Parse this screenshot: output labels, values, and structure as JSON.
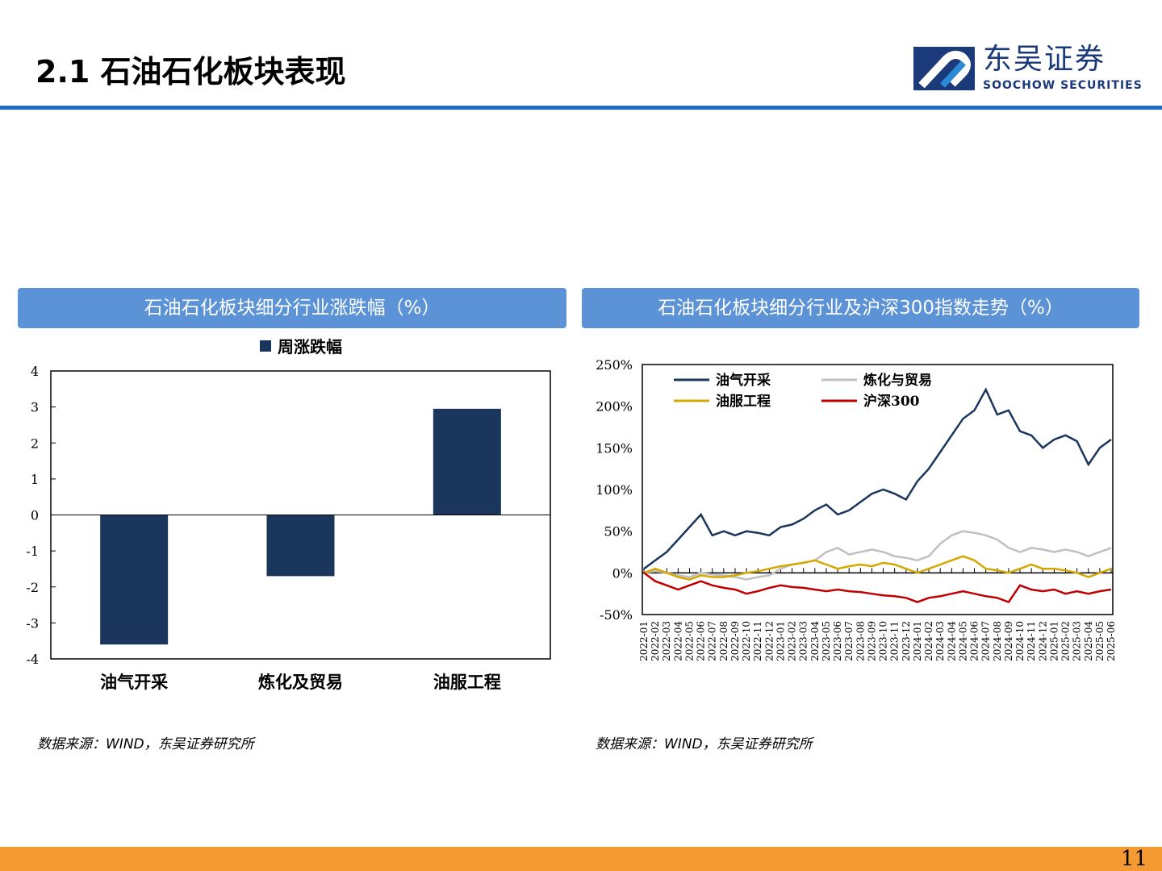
{
  "header": {
    "title": "2.1 石油石化板块表现",
    "logo_cn": "东吴证券",
    "logo_en": "SOOCHOW SECURITIES"
  },
  "panels": [
    {
      "title": "石油石化板块细分行业涨跌幅（%）",
      "source": "数据来源：WIND，东吴证券研究所"
    },
    {
      "title": "石油石化板块细分行业及沪深300指数走势（%）",
      "source": "数据来源：WIND，东吴证券研究所"
    }
  ],
  "page_number": "11",
  "chart_data": [
    {
      "type": "bar",
      "legend": [
        "周涨跌幅"
      ],
      "categories": [
        "油气开采",
        "炼化及贸易",
        "油服工程"
      ],
      "values": [
        -3.6,
        -1.7,
        2.95
      ],
      "ylim": [
        -4,
        4
      ],
      "yticks": [
        4,
        3,
        2,
        1,
        0,
        -1,
        -2,
        -3,
        -4
      ],
      "color": "#1b365d"
    },
    {
      "type": "line",
      "ylim": [
        -50,
        250
      ],
      "yticks": [
        "250%",
        "200%",
        "150%",
        "100%",
        "50%",
        "0%",
        "-50%"
      ],
      "x": [
        "2022-01",
        "2022-02",
        "2022-03",
        "2022-04",
        "2022-05",
        "2022-06",
        "2022-07",
        "2022-08",
        "2022-09",
        "2022-10",
        "2022-11",
        "2022-12",
        "2023-01",
        "2023-02",
        "2023-03",
        "2023-04",
        "2023-05",
        "2023-06",
        "2023-07",
        "2023-08",
        "2023-09",
        "2023-10",
        "2023-11",
        "2023-12",
        "2024-01",
        "2024-02",
        "2024-03",
        "2024-04",
        "2024-05",
        "2024-06",
        "2024-07",
        "2024-08",
        "2024-09",
        "2024-10",
        "2024-11",
        "2024-12",
        "2025-01",
        "2025-02",
        "2025-03",
        "2025-04",
        "2025-05",
        "2025-06"
      ],
      "series": [
        {
          "name": "油气开采",
          "color": "#1b365d",
          "values": [
            5,
            15,
            25,
            40,
            55,
            70,
            45,
            50,
            45,
            50,
            48,
            45,
            55,
            58,
            65,
            75,
            82,
            70,
            75,
            85,
            95,
            100,
            95,
            88,
            110,
            125,
            145,
            165,
            185,
            195,
            220,
            190,
            195,
            170,
            165,
            150,
            160,
            165,
            158,
            130,
            150,
            160
          ]
        },
        {
          "name": "炼化与贸易",
          "color": "#c0c0c0",
          "values": [
            0,
            2,
            0,
            -3,
            -5,
            0,
            -2,
            -3,
            -5,
            -8,
            -5,
            -3,
            5,
            10,
            12,
            15,
            25,
            30,
            22,
            25,
            28,
            25,
            20,
            18,
            15,
            20,
            35,
            45,
            50,
            48,
            45,
            40,
            30,
            25,
            30,
            28,
            25,
            28,
            25,
            20,
            25,
            30
          ]
        },
        {
          "name": "油服工程",
          "color": "#d4a800",
          "values": [
            0,
            5,
            0,
            -5,
            -8,
            -3,
            -5,
            -5,
            -3,
            0,
            2,
            5,
            8,
            10,
            12,
            15,
            10,
            5,
            8,
            10,
            8,
            12,
            10,
            5,
            0,
            5,
            10,
            15,
            20,
            15,
            5,
            3,
            0,
            5,
            10,
            5,
            5,
            3,
            0,
            -5,
            0,
            5
          ]
        },
        {
          "name": "沪深300",
          "color": "#c00000",
          "values": [
            0,
            -10,
            -15,
            -20,
            -15,
            -10,
            -15,
            -18,
            -20,
            -25,
            -22,
            -18,
            -15,
            -17,
            -18,
            -20,
            -22,
            -20,
            -22,
            -23,
            -25,
            -27,
            -28,
            -30,
            -35,
            -30,
            -28,
            -25,
            -22,
            -25,
            -28,
            -30,
            -35,
            -15,
            -20,
            -22,
            -20,
            -25,
            -22,
            -25,
            -22,
            -20
          ]
        }
      ]
    }
  ]
}
